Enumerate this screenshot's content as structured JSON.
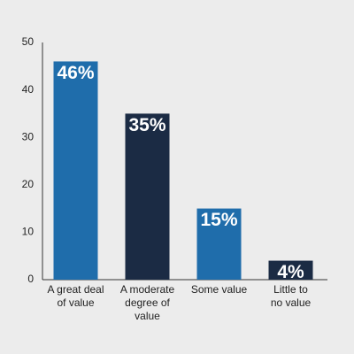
{
  "chart_data": {
    "type": "bar",
    "categories": [
      "A great deal\nof value",
      "A moderate\ndegree of\nvalue",
      "Some value",
      "Little to\nno value"
    ],
    "values": [
      46,
      35,
      15,
      4
    ],
    "value_labels": [
      "46%",
      "35%",
      "15%",
      "4%"
    ],
    "colors": [
      "#1f6dab",
      "#1b2b44",
      "#1f6dab",
      "#1b2b44"
    ],
    "ylim": [
      0,
      50
    ],
    "yticks": [
      0,
      10,
      20,
      30,
      40,
      50
    ],
    "grid": false
  }
}
